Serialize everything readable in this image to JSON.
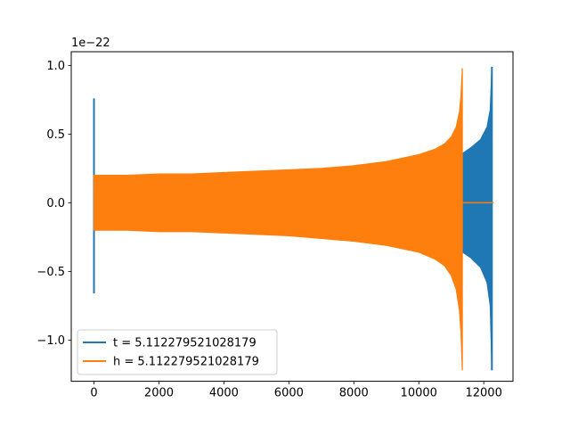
{
  "chart_data": {
    "type": "line",
    "title": "",
    "xlabel": "",
    "ylabel": "",
    "xlim": [
      -700,
      12900
    ],
    "ylim": [
      -1.3,
      1.1
    ],
    "x_ticks": [
      0,
      2000,
      4000,
      6000,
      8000,
      10000,
      12000
    ],
    "x_tick_labels": [
      "0",
      "2000",
      "4000",
      "6000",
      "8000",
      "10000",
      "12000"
    ],
    "y_ticks": [
      1.0,
      0.5,
      0.0,
      -0.5,
      -1.0
    ],
    "y_tick_labels": [
      "1.0",
      "0.5",
      "0.0",
      "−0.5",
      "−1.0"
    ],
    "offset_text": "1e−22",
    "grid": false,
    "legend_position": "lower-left",
    "series": [
      {
        "name": "t = 5.112279521028179",
        "color": "#1f77b4",
        "envelope": {
          "x": [
            0,
            2000,
            4000,
            6000,
            8000,
            10000,
            11000,
            11350,
            11600,
            11900,
            12100,
            12200,
            12250
          ],
          "upper": [
            0.19,
            0.2,
            0.21,
            0.23,
            0.26,
            0.31,
            0.34,
            0.36,
            0.4,
            0.46,
            0.55,
            0.68,
            0.99
          ],
          "lower": [
            -0.19,
            -0.2,
            -0.21,
            -0.23,
            -0.26,
            -0.31,
            -0.34,
            -0.36,
            -0.4,
            -0.47,
            -0.58,
            -0.75,
            -1.22
          ]
        },
        "spikes": [
          {
            "x": 0,
            "max": 0.76,
            "min": -0.66
          },
          {
            "x": 12250,
            "max": 0.99,
            "min": -1.22
          }
        ],
        "flat": {
          "x_start": 12250,
          "x_end": 12300,
          "y": 0
        }
      },
      {
        "name": "h = 5.112279521028179",
        "color": "#ff7f0e",
        "envelope": {
          "x": [
            0,
            1000,
            2000,
            3000,
            4000,
            5000,
            6000,
            7000,
            8000,
            9000,
            10000,
            10500,
            10800,
            11000,
            11150,
            11250,
            11300,
            11340
          ],
          "upper": [
            0.2,
            0.2,
            0.21,
            0.21,
            0.22,
            0.23,
            0.24,
            0.25,
            0.27,
            0.3,
            0.35,
            0.39,
            0.43,
            0.48,
            0.55,
            0.66,
            0.78,
            0.98
          ],
          "lower": [
            -0.2,
            -0.2,
            -0.21,
            -0.21,
            -0.22,
            -0.23,
            -0.24,
            -0.26,
            -0.28,
            -0.31,
            -0.36,
            -0.41,
            -0.46,
            -0.53,
            -0.63,
            -0.78,
            -0.95,
            -1.22
          ]
        },
        "flat": {
          "x_start": 11340,
          "x_end": 12300,
          "y": 0
        }
      }
    ]
  }
}
